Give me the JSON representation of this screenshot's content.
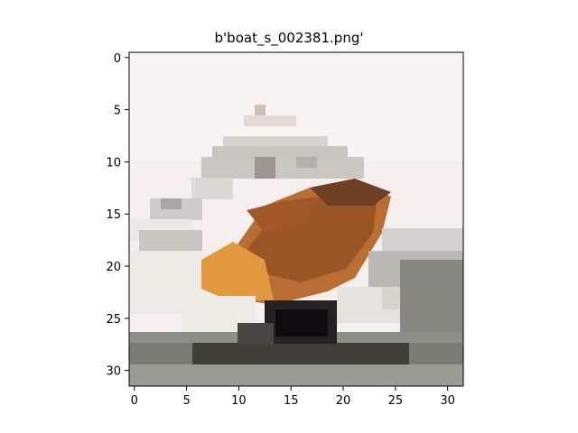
{
  "title": "b'boat_s_002381.png'",
  "image_size": [
    32,
    32
  ],
  "x_ticks": [
    "0",
    "5",
    "10",
    "15",
    "20",
    "25",
    "30"
  ],
  "y_ticks": [
    "0",
    "5",
    "10",
    "15",
    "20",
    "25",
    "30"
  ],
  "colors": {
    "background": "#f5f0ee",
    "hull_orange": "#c87832",
    "hull_dark": "#8a4a1e",
    "white_foam": "#ece9e6",
    "grey_water": "#8c8f88",
    "dark_water": "#3f3f38",
    "black_shadow": "#141214"
  }
}
